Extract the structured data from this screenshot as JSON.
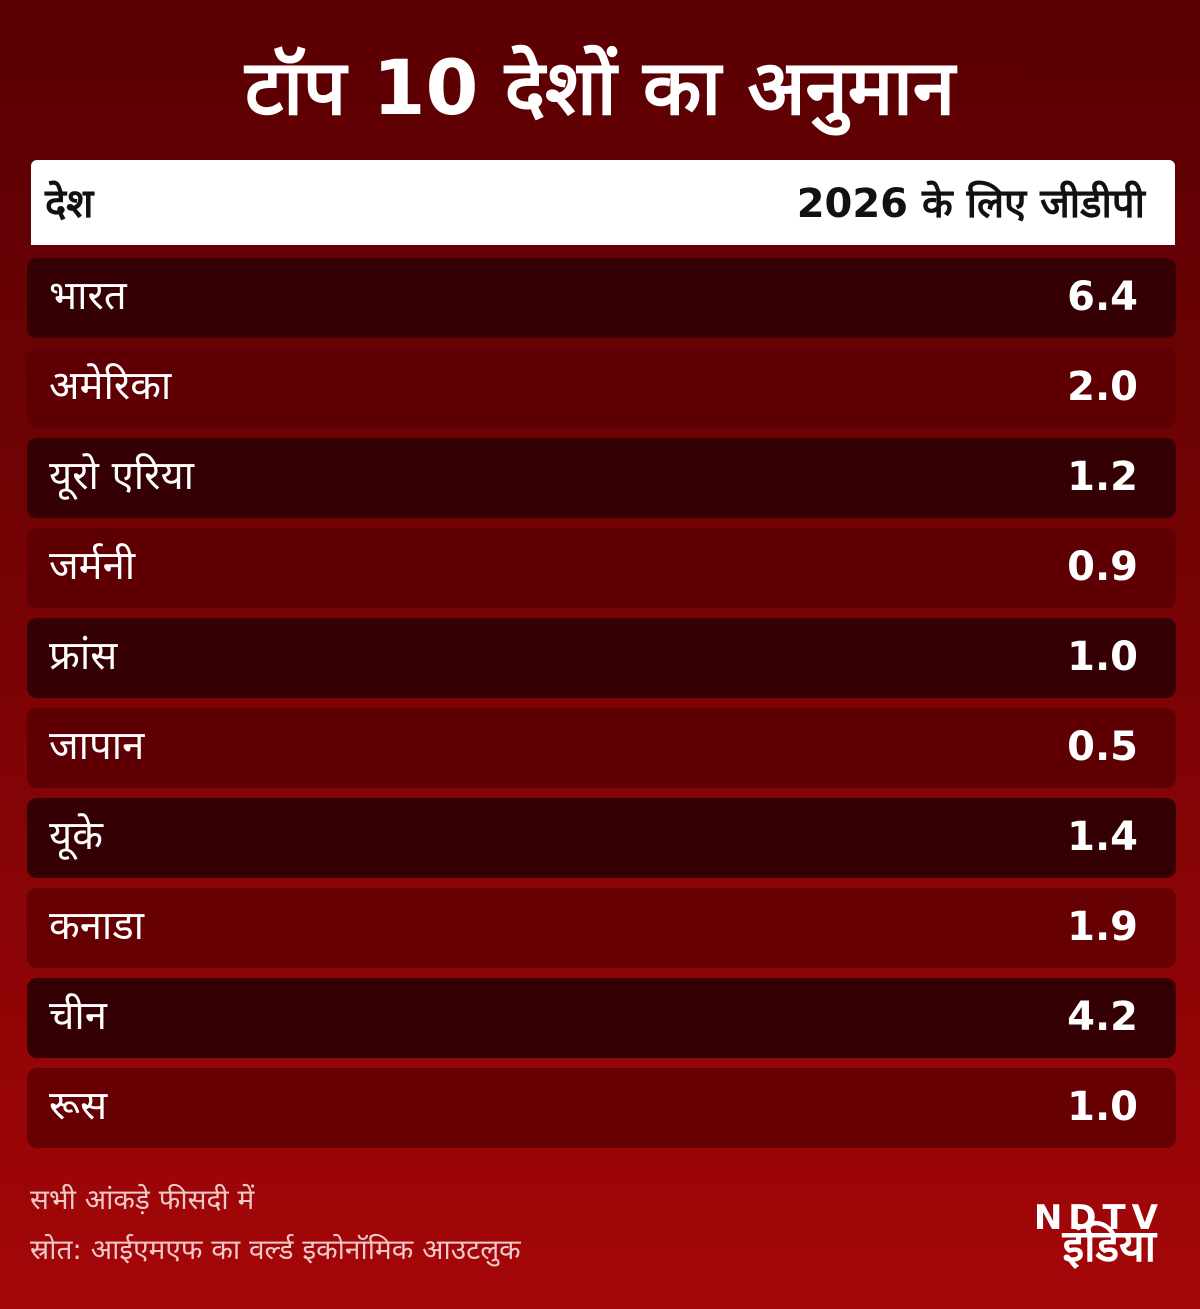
{
  "title": "टॉप 10 देशों का अनुमान",
  "table": {
    "headers": {
      "country": "देश",
      "gdp": "2026 के लिए जीडीपी"
    },
    "rows": [
      {
        "country": "भारत",
        "value": "6.4"
      },
      {
        "country": "अमेरिका",
        "value": "2.0"
      },
      {
        "country": "यूरो एरिया",
        "value": "1.2"
      },
      {
        "country": "जर्मनी",
        "value": "0.9"
      },
      {
        "country": "फ्रांस",
        "value": "1.0"
      },
      {
        "country": "जापान",
        "value": "0.5"
      },
      {
        "country": "यूके",
        "value": "1.4"
      },
      {
        "country": "कनाडा",
        "value": "1.9"
      },
      {
        "country": "चीन",
        "value": "4.2"
      },
      {
        "country": "रूस",
        "value": "1.0"
      }
    ]
  },
  "footer": {
    "note": "सभी आंकड़े फीसदी में",
    "source": "स्रोत: आईएमएफ का वर्ल्ड इकोनॉमिक आउटलुक"
  },
  "logo": {
    "brand": "NDTV",
    "sub": "इंडिया"
  },
  "colors": {
    "row_dark": "#350003",
    "row_mid": "#5e0003",
    "header_bg": "#ffffff"
  }
}
